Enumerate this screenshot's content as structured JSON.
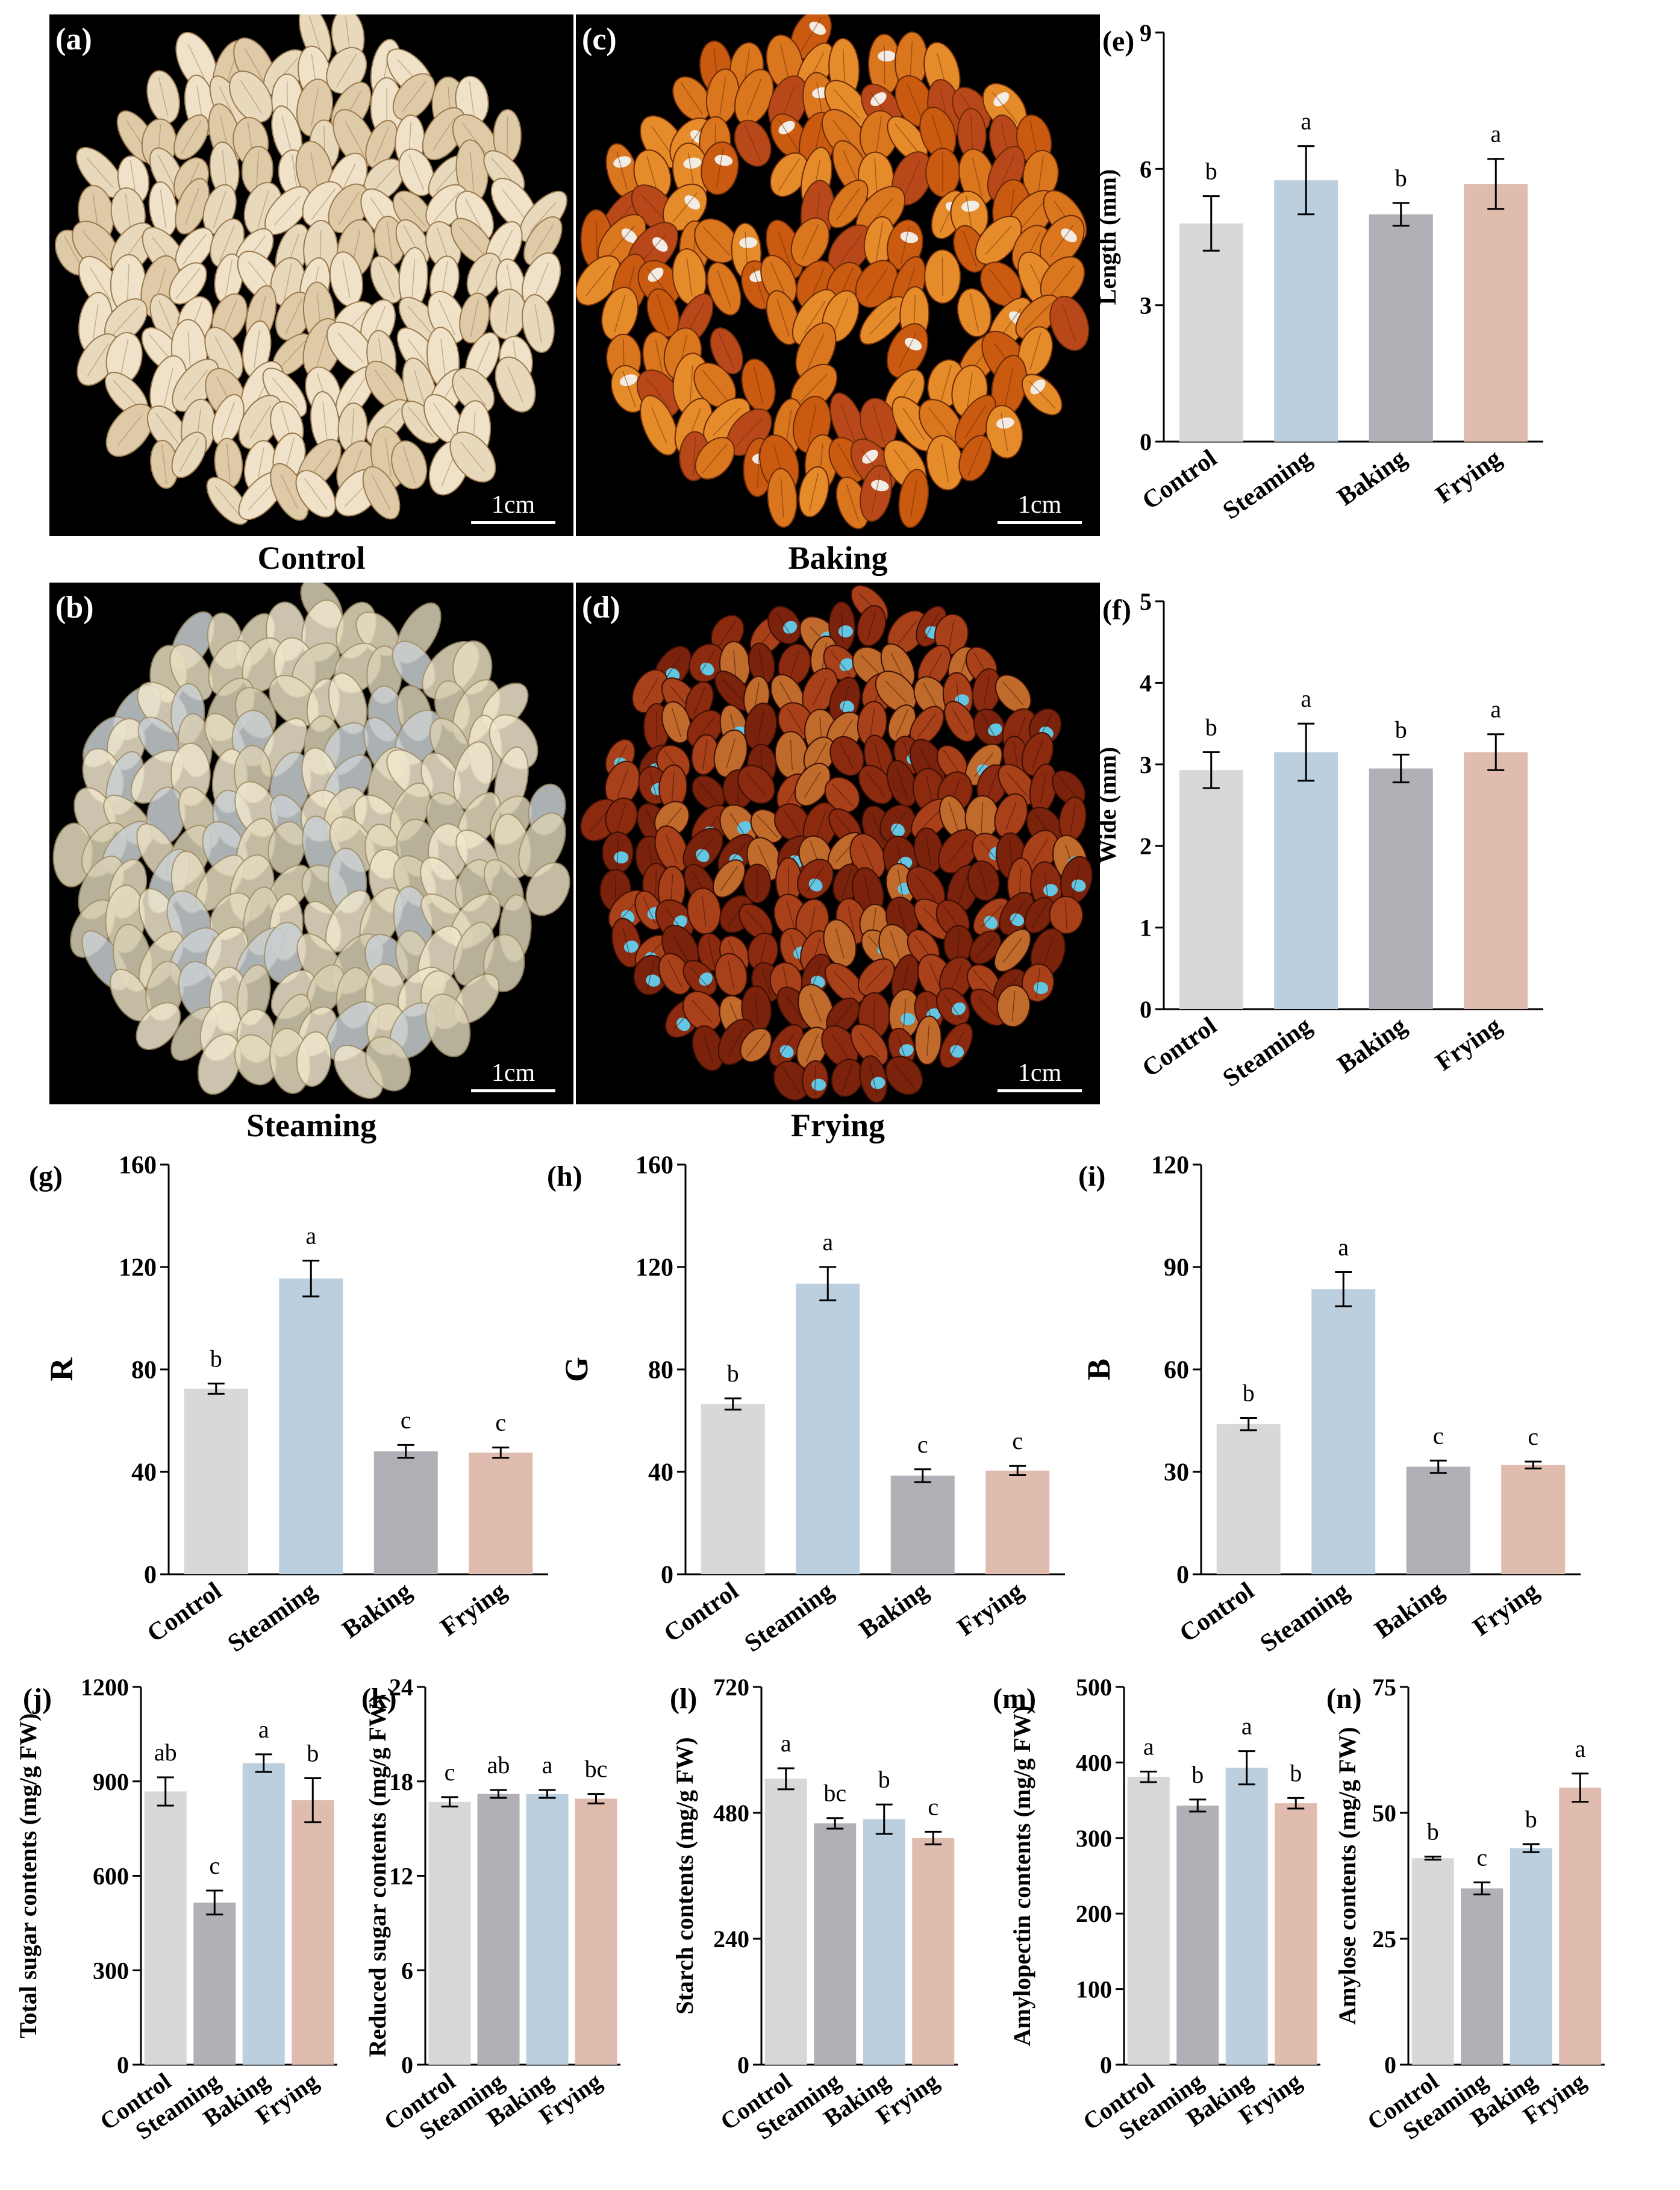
{
  "photos": [
    {
      "label": "(a)",
      "scale": "1cm",
      "caption": "Control",
      "kind": "control"
    },
    {
      "label": "(c)",
      "scale": "1cm",
      "caption": "Baking",
      "kind": "baking"
    },
    {
      "label": "(b)",
      "scale": "1cm",
      "caption": "Steaming",
      "kind": "steaming"
    },
    {
      "label": "(d)",
      "scale": "1cm",
      "caption": "Frying",
      "kind": "frying"
    }
  ],
  "colors": {
    "Control": "#d8d8d8",
    "Steaming": "#bccfdf",
    "Baking": "#b0b0b6",
    "Frying": "#e0bcaf",
    "Gray": "#b0b0b6",
    "Blue": "#bccfdf"
  },
  "chart_data": [
    {
      "id": "e",
      "panel_label": "(e)",
      "type": "bar",
      "ylabel": "Length (mm)",
      "ylim": [
        0,
        9
      ],
      "yticks": [
        "0",
        "3",
        "6",
        "9"
      ],
      "categories": [
        "Control",
        "Steaming",
        "Baking",
        "Frying"
      ],
      "values": [
        4.8,
        5.75,
        5.0,
        5.67
      ],
      "errors": [
        0.6,
        0.75,
        0.25,
        0.55
      ],
      "letters": [
        "b",
        "a",
        "b",
        "a"
      ],
      "bar_colors": [
        "Control",
        "Steaming",
        "Baking",
        "Frying"
      ]
    },
    {
      "id": "f",
      "panel_label": "(f)",
      "type": "bar",
      "ylabel": "Wide (mm)",
      "ylim": [
        0,
        5
      ],
      "yticks": [
        "0",
        "1",
        "2",
        "3",
        "4",
        "5"
      ],
      "categories": [
        "Control",
        "Steaming",
        "Baking",
        "Frying"
      ],
      "values": [
        2.93,
        3.15,
        2.95,
        3.15
      ],
      "errors": [
        0.22,
        0.35,
        0.17,
        0.22
      ],
      "letters": [
        "b",
        "a",
        "b",
        "a"
      ],
      "bar_colors": [
        "Control",
        "Steaming",
        "Baking",
        "Frying"
      ]
    },
    {
      "id": "g",
      "panel_label": "(g)",
      "type": "bar",
      "ylabel": "R",
      "ylim": [
        0,
        160
      ],
      "yticks": [
        "0",
        "40",
        "80",
        "120",
        "160"
      ],
      "categories": [
        "Control",
        "Steaming",
        "Baking",
        "Frying"
      ],
      "values": [
        72.5,
        115.5,
        48,
        47.5
      ],
      "errors": [
        2,
        7,
        2.5,
        2
      ],
      "letters": [
        "b",
        "a",
        "c",
        "c"
      ],
      "bar_colors": [
        "Control",
        "Steaming",
        "Baking",
        "Frying"
      ]
    },
    {
      "id": "h",
      "panel_label": "(h)",
      "type": "bar",
      "ylabel": "G",
      "ylim": [
        0,
        160
      ],
      "yticks": [
        "0",
        "40",
        "80",
        "120",
        "160"
      ],
      "categories": [
        "Control",
        "Steaming",
        "Baking",
        "Frying"
      ],
      "values": [
        66.5,
        113.5,
        38.5,
        40.5
      ],
      "errors": [
        2.2,
        6.5,
        2.5,
        1.8
      ],
      "letters": [
        "b",
        "a",
        "c",
        "c"
      ],
      "bar_colors": [
        "Control",
        "Steaming",
        "Baking",
        "Frying"
      ]
    },
    {
      "id": "i",
      "panel_label": "(i)",
      "type": "bar",
      "ylabel": "B",
      "ylim": [
        0,
        120
      ],
      "yticks": [
        "0",
        "30",
        "60",
        "90",
        "120"
      ],
      "categories": [
        "Control",
        "Steaming",
        "Baking",
        "Frying"
      ],
      "values": [
        44,
        83.5,
        31.5,
        32
      ],
      "errors": [
        1.8,
        5,
        1.8,
        1
      ],
      "letters": [
        "b",
        "a",
        "c",
        "c"
      ],
      "bar_colors": [
        "Control",
        "Steaming",
        "Baking",
        "Frying"
      ]
    },
    {
      "id": "j",
      "panel_label": "(j)",
      "type": "bar",
      "ylabel": "Total sugar contents (mg/g FW)",
      "ylim": [
        0,
        1200
      ],
      "yticks": [
        "0",
        "300",
        "600",
        "900",
        "1200"
      ],
      "categories": [
        "Control",
        "Steaming",
        "Baking",
        "Frying"
      ],
      "values": [
        868,
        515,
        958,
        840
      ],
      "errors": [
        45,
        38,
        28,
        70
      ],
      "letters": [
        "ab",
        "c",
        "a",
        "b"
      ],
      "bar_colors": [
        "Control",
        "Gray",
        "Blue",
        "Frying"
      ]
    },
    {
      "id": "k",
      "panel_label": "(k)",
      "type": "bar",
      "ylabel": "Reduced sugar contents (mg/g FW)",
      "ylim": [
        0,
        24
      ],
      "yticks": [
        "0",
        "6",
        "12",
        "18",
        "24"
      ],
      "categories": [
        "Control",
        "Steaming",
        "Baking",
        "Frying"
      ],
      "values": [
        16.7,
        17.2,
        17.2,
        16.9
      ],
      "errors": [
        0.3,
        0.25,
        0.25,
        0.3
      ],
      "letters": [
        "c",
        "ab",
        "a",
        "bc"
      ],
      "bar_colors": [
        "Control",
        "Gray",
        "Blue",
        "Frying"
      ]
    },
    {
      "id": "l",
      "panel_label": "(l)",
      "type": "bar",
      "ylabel": "Starch contents (mg/g FW)",
      "ylim": [
        0,
        720
      ],
      "yticks": [
        "0",
        "240",
        "480",
        "720"
      ],
      "categories": [
        "Control",
        "Steaming",
        "Baking",
        "Frying"
      ],
      "values": [
        545,
        460,
        468,
        432
      ],
      "errors": [
        20,
        10,
        28,
        12
      ],
      "letters": [
        "a",
        "bc",
        "b",
        "c"
      ],
      "bar_colors": [
        "Control",
        "Gray",
        "Blue",
        "Frying"
      ]
    },
    {
      "id": "m",
      "panel_label": "(m)",
      "type": "bar",
      "ylabel": "Amylopectin contents (mg/g FW)",
      "ylim": [
        0,
        500
      ],
      "yticks": [
        "0",
        "100",
        "200",
        "300",
        "400",
        "500"
      ],
      "categories": [
        "Control",
        "Steaming",
        "Baking",
        "Frying"
      ],
      "values": [
        381,
        343,
        393,
        346
      ],
      "errors": [
        7,
        8,
        22,
        7
      ],
      "letters": [
        "a",
        "b",
        "a",
        "b"
      ],
      "bar_colors": [
        "Control",
        "Gray",
        "Blue",
        "Frying"
      ]
    },
    {
      "id": "n",
      "panel_label": "(n)",
      "type": "bar",
      "ylabel": "Amylose contents (mg/g FW)",
      "ylim": [
        0,
        75
      ],
      "yticks": [
        "0",
        "25",
        "50",
        "75"
      ],
      "categories": [
        "Control",
        "Steaming",
        "Baking",
        "Frying"
      ],
      "values": [
        41,
        35,
        43,
        55
      ],
      "errors": [
        0.3,
        1.2,
        0.8,
        2.8
      ],
      "letters": [
        "b",
        "c",
        "b",
        "a"
      ],
      "bar_colors": [
        "Control",
        "Gray",
        "Blue",
        "Frying"
      ]
    }
  ]
}
